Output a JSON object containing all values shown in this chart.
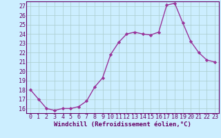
{
  "x": [
    0,
    1,
    2,
    3,
    4,
    5,
    6,
    7,
    8,
    9,
    10,
    11,
    12,
    13,
    14,
    15,
    16,
    17,
    18,
    19,
    20,
    21,
    22,
    23
  ],
  "y": [
    18,
    17,
    16,
    15.8,
    16,
    16,
    16.2,
    16.8,
    18.3,
    19.3,
    21.8,
    23.1,
    24.0,
    24.2,
    24.0,
    23.9,
    24.2,
    27.1,
    27.3,
    25.2,
    23.2,
    22.0,
    21.2,
    21.0
  ],
  "line_color": "#993399",
  "marker": "D",
  "markersize": 2.2,
  "linewidth": 1.0,
  "bg_color": "#cceeff",
  "grid_color": "#aacccc",
  "xlabel": "Windchill (Refroidissement éolien,°C)",
  "ylabel_ticks": [
    16,
    17,
    18,
    19,
    20,
    21,
    22,
    23,
    24,
    25,
    26,
    27
  ],
  "xlim": [
    -0.5,
    23.5
  ],
  "ylim": [
    15.5,
    27.5
  ],
  "xlabel_fontsize": 6.5,
  "tick_fontsize": 6.0,
  "xlabel_color": "#660066",
  "tick_color": "#660066",
  "spine_color": "#660066"
}
